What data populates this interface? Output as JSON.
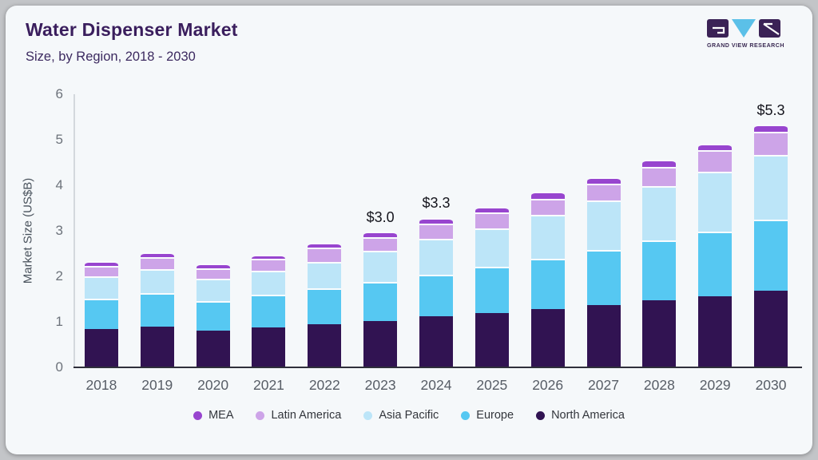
{
  "header": {
    "title": "Water Dispenser Market",
    "subtitle": "Size, by Region, 2018 - 2030",
    "logo_caption": "GRAND VIEW RESEARCH"
  },
  "colors": {
    "card_bg": "#F5F8FA",
    "title_text": "#3A1E5D",
    "mea": "#9845CF",
    "latin_america": "#CDA4E8",
    "asia_pacific": "#BCE5F8",
    "europe": "#56C8F2",
    "north_america": "#311352"
  },
  "chart_data": {
    "type": "bar",
    "stacked": true,
    "title": "Water Dispenser Market Size, by Region, 2018 - 2030",
    "ylabel": "Market Size (US$B)",
    "ylim": [
      0,
      6
    ],
    "yticks": [
      0,
      1,
      2,
      3,
      4,
      5,
      6
    ],
    "grid": false,
    "legend_position": "bottom",
    "categories": [
      "2018",
      "2019",
      "2020",
      "2021",
      "2022",
      "2023",
      "2024",
      "2025",
      "2026",
      "2027",
      "2028",
      "2029",
      "2030"
    ],
    "series": [
      {
        "name": "North America",
        "color": "#311352",
        "values": [
          0.84,
          0.89,
          0.8,
          0.87,
          0.95,
          1.01,
          1.12,
          1.19,
          1.28,
          1.37,
          1.47,
          1.57,
          1.69
        ]
      },
      {
        "name": "Europe",
        "color": "#56C8F2",
        "values": [
          0.67,
          0.74,
          0.66,
          0.72,
          0.79,
          0.86,
          0.92,
          1.02,
          1.1,
          1.21,
          1.32,
          1.42,
          1.55
        ]
      },
      {
        "name": "Asia Pacific",
        "color": "#BCE5F8",
        "values": [
          0.49,
          0.52,
          0.49,
          0.53,
          0.57,
          0.69,
          0.79,
          0.85,
          0.97,
          1.08,
          1.19,
          1.31,
          1.42
        ]
      },
      {
        "name": "Latin America",
        "color": "#CDA4E8",
        "values": [
          0.22,
          0.27,
          0.23,
          0.26,
          0.32,
          0.3,
          0.33,
          0.34,
          0.36,
          0.38,
          0.43,
          0.48,
          0.52
        ]
      },
      {
        "name": "MEA",
        "color": "#9845CF",
        "values": [
          0.11,
          0.11,
          0.1,
          0.1,
          0.1,
          0.12,
          0.13,
          0.13,
          0.15,
          0.14,
          0.15,
          0.14,
          0.15
        ]
      }
    ],
    "totals": [
      2.33,
      2.53,
      2.28,
      2.48,
      2.73,
      2.98,
      3.29,
      3.53,
      3.86,
      4.18,
      4.56,
      4.92,
      5.33
    ],
    "annotations": [
      {
        "category": "2023",
        "label": "$3.0"
      },
      {
        "category": "2024",
        "label": "$3.3"
      },
      {
        "category": "2030",
        "label": "$5.3"
      }
    ]
  },
  "legend": [
    {
      "label": "MEA",
      "color": "#9845CF"
    },
    {
      "label": "Latin America",
      "color": "#CDA4E8"
    },
    {
      "label": "Asia Pacific",
      "color": "#BCE5F8"
    },
    {
      "label": "Europe",
      "color": "#56C8F2"
    },
    {
      "label": "North America",
      "color": "#311352"
    }
  ]
}
